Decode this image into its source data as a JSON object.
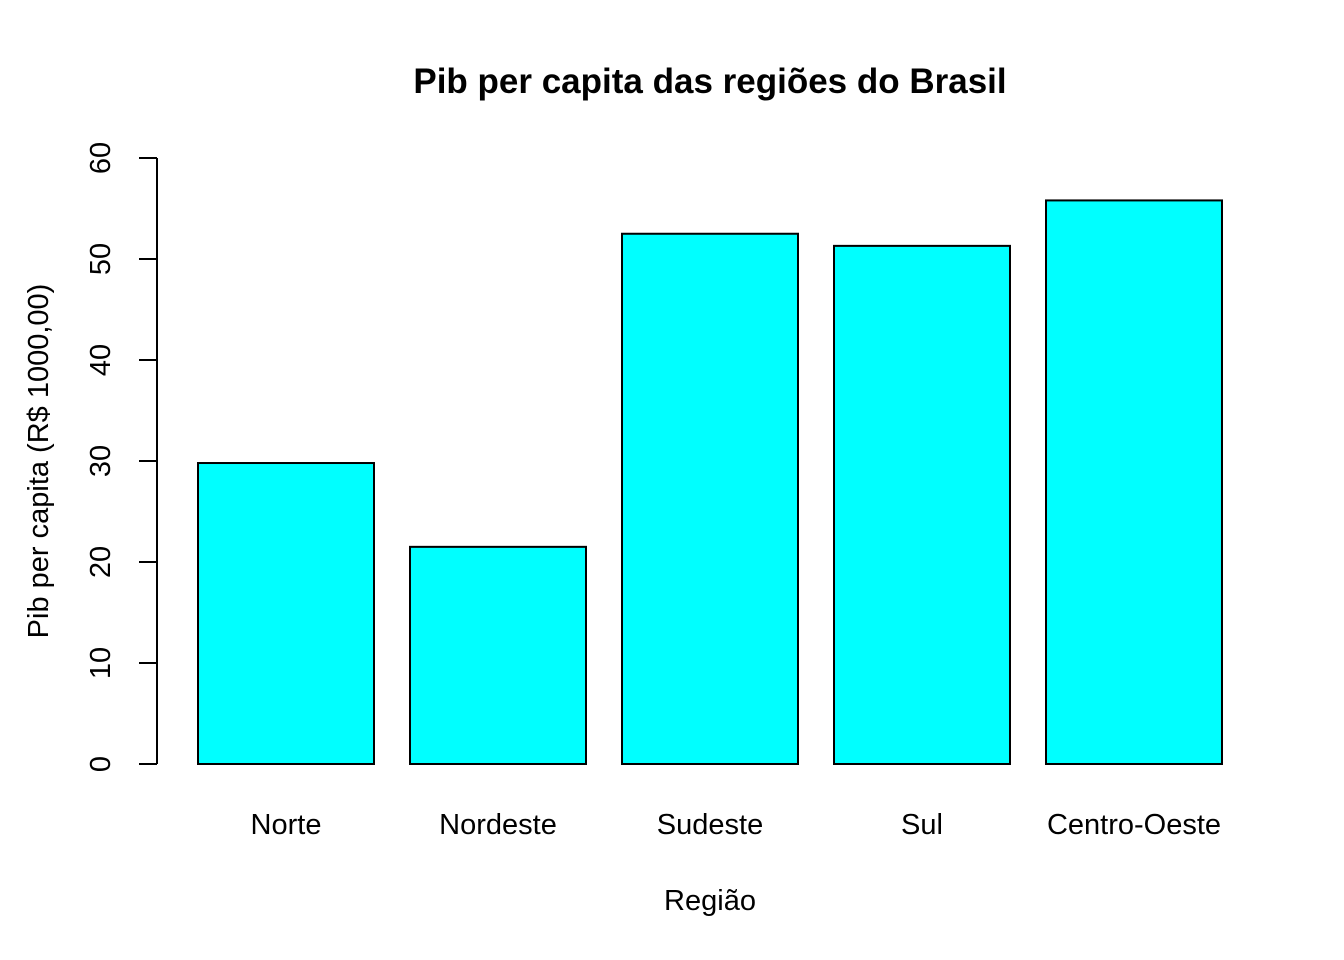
{
  "chart_data": {
    "type": "bar",
    "title": "Pib per capita das regiões do Brasil",
    "xlabel": "Região",
    "ylabel": "Pib per capita (R$ 1000,00)",
    "categories": [
      "Norte",
      "Nordeste",
      "Sudeste",
      "Sul",
      "Centro-Oeste"
    ],
    "values": [
      29.8,
      21.5,
      52.5,
      51.3,
      55.8
    ],
    "ylim": [
      0,
      60
    ],
    "yticks": [
      "0",
      "10",
      "20",
      "30",
      "40",
      "50",
      "60"
    ],
    "bar_color": "#00FFFF",
    "grid": false
  }
}
